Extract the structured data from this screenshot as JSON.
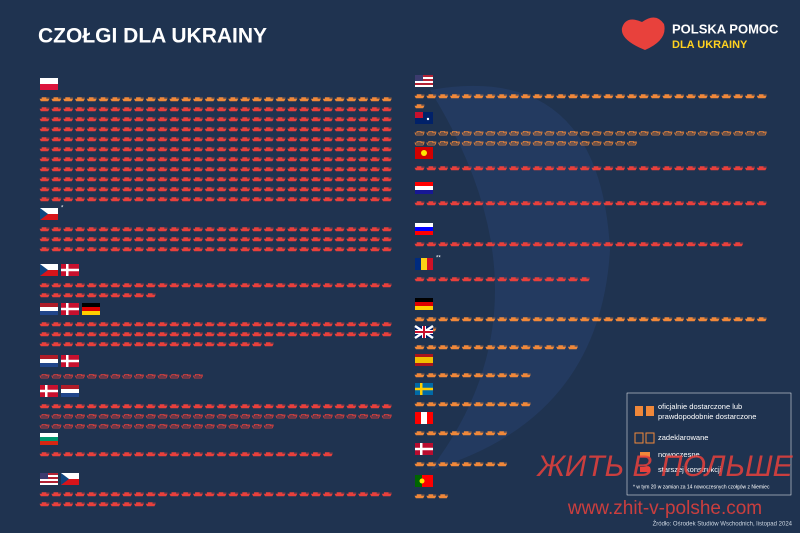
{
  "header": {
    "title": "CZOŁGI DLA UKRAINY",
    "logo_top": "POLSKA POMOC",
    "logo_bottom": "DLA UKRAINY"
  },
  "groups": {
    "left": [
      {
        "segments": [
          {
            "kind": "modern",
            "status": "official",
            "count": 30
          },
          {
            "kind": "old",
            "status": "official",
            "count": 300
          }
        ]
      },
      {
        "note": "*",
        "segments": [
          {
            "kind": "old",
            "status": "official",
            "count": 90
          }
        ]
      },
      {
        "segments": [
          {
            "kind": "old",
            "status": "official",
            "count": 40
          }
        ]
      },
      {
        "segments": [
          {
            "kind": "old",
            "status": "official",
            "count": 80
          }
        ]
      },
      {
        "segments": [
          {
            "kind": "old",
            "status": "declared",
            "count": 14
          }
        ]
      },
      {
        "segments": [
          {
            "kind": "old",
            "status": "official",
            "count": 30
          },
          {
            "kind": "old",
            "status": "declared",
            "count": 50
          }
        ]
      },
      {
        "segments": [
          {
            "kind": "old",
            "status": "official",
            "count": 25
          }
        ]
      },
      {
        "segments": [
          {
            "kind": "old",
            "status": "official",
            "count": 40
          }
        ]
      }
    ],
    "right": [
      {
        "segments": [
          {
            "kind": "modern",
            "status": "official",
            "count": 31
          }
        ]
      },
      {
        "segments": [
          {
            "kind": "modern",
            "status": "declared",
            "count": 49
          }
        ]
      },
      {
        "segments": [
          {
            "kind": "old",
            "status": "official",
            "count": 30
          }
        ]
      },
      {
        "segments": [
          {
            "kind": "old",
            "status": "official",
            "count": 30
          }
        ]
      },
      {
        "segments": [
          {
            "kind": "old",
            "status": "official",
            "count": 28
          }
        ]
      },
      {
        "note": "**",
        "segments": [
          {
            "kind": "old",
            "status": "official",
            "count": 15
          }
        ]
      },
      {
        "segments": [
          {
            "kind": "modern",
            "status": "official",
            "count": 32
          }
        ]
      },
      {
        "segments": [
          {
            "kind": "modern",
            "status": "official",
            "count": 14
          }
        ]
      },
      {
        "segments": [
          {
            "kind": "modern",
            "status": "official",
            "count": 10
          }
        ]
      },
      {
        "segments": [
          {
            "kind": "modern",
            "status": "official",
            "count": 10
          }
        ]
      },
      {
        "segments": [
          {
            "kind": "modern",
            "status": "official",
            "count": 8
          }
        ]
      },
      {
        "segments": [
          {
            "kind": "modern",
            "status": "official",
            "count": 8
          }
        ]
      },
      {
        "segments": [
          {
            "kind": "modern",
            "status": "official",
            "count": 3
          }
        ]
      }
    ]
  },
  "legend": {
    "official": "oficjalnie dostarczone lub prawdopodobnie dostarczone",
    "declared": "zadeklarowane",
    "modern": "nowoczesne",
    "old": "starszej konstrukcji"
  },
  "footnotes": [
    "* w tym 20 w zamian za 14 nowoczesnych czołgów z Niemiec"
  ],
  "source": "Źródło: Ośrodek Studiów Wschodnich, listopad 2024",
  "watermark": {
    "title": "ЖИТЬ В ПОЛЬШЕ",
    "url": "www.zhit-v-polshe.com"
  }
}
